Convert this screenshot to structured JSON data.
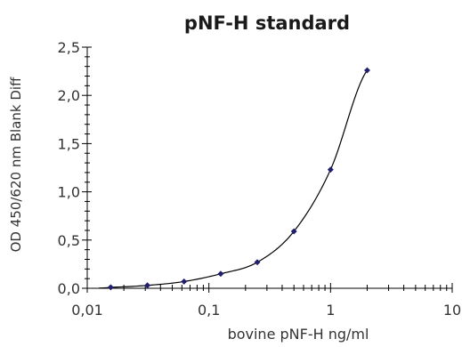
{
  "chart_data": {
    "type": "scatter",
    "title": "pNF-H standard",
    "xlabel": "bovine pNF-H ng/ml",
    "ylabel": "OD 450/620 nm Blank Diff",
    "x_scale": "log",
    "xlim": [
      0.01,
      10
    ],
    "ylim": [
      0,
      2.5
    ],
    "x_ticks": [
      {
        "value": 0.01,
        "label": "0,01"
      },
      {
        "value": 0.1,
        "label": "0,1"
      },
      {
        "value": 1,
        "label": "1"
      },
      {
        "value": 10,
        "label": "10"
      }
    ],
    "y_ticks": [
      {
        "value": 0,
        "label": "0,0"
      },
      {
        "value": 0.5,
        "label": "0,5"
      },
      {
        "value": 1,
        "label": "1,0"
      },
      {
        "value": 1.5,
        "label": "1,5"
      },
      {
        "value": 2,
        "label": "2,0"
      },
      {
        "value": 2.5,
        "label": "2,5"
      }
    ],
    "grid": false,
    "series": [
      {
        "marker": "diamond",
        "color": "#1f1f6e",
        "x": [
          0.0156,
          0.03125,
          0.0625,
          0.125,
          0.25,
          0.5,
          1,
          2
        ],
        "y": [
          0.01,
          0.03,
          0.07,
          0.15,
          0.27,
          0.59,
          1.23,
          2.26
        ]
      }
    ],
    "fit_curve": {
      "color": "#000000",
      "type": "smooth"
    }
  }
}
